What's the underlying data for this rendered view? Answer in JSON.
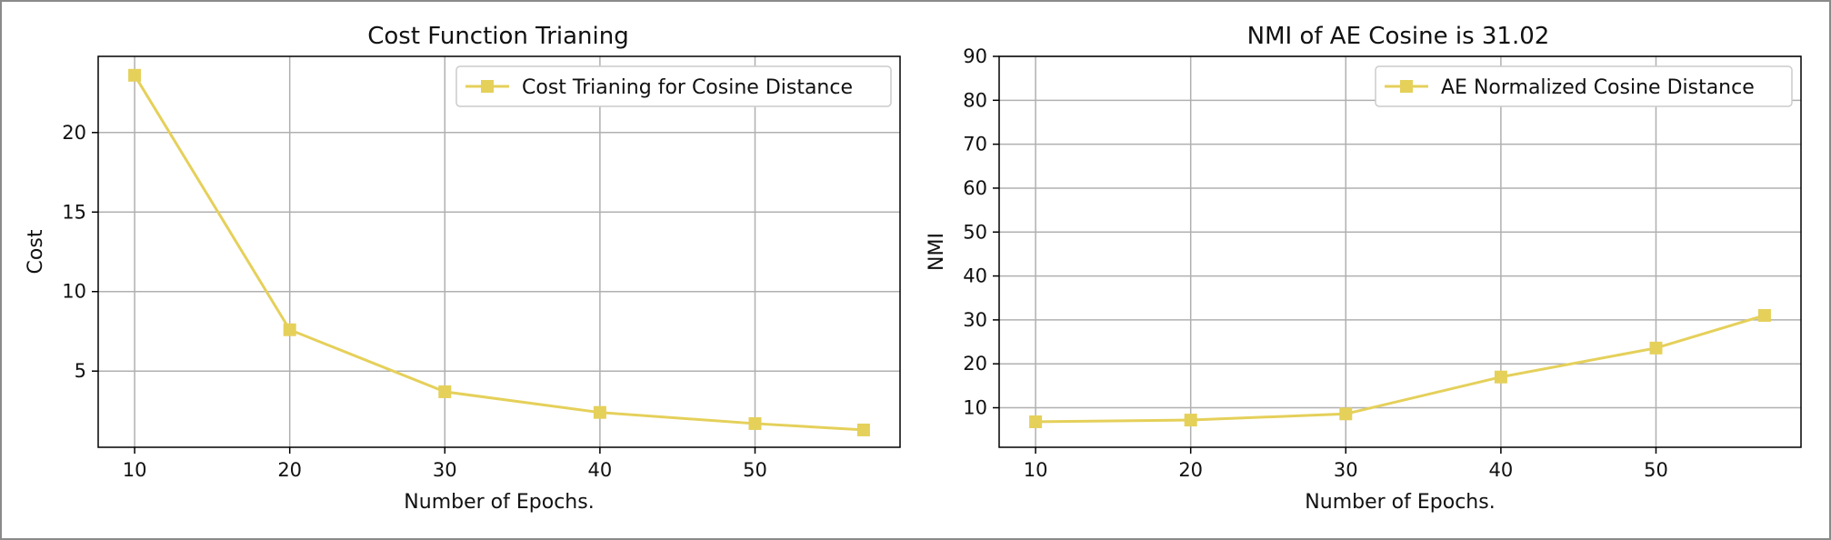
{
  "chart_data": [
    {
      "type": "line",
      "title": "Cost Function Trianing",
      "xlabel": "Number of Epochs.",
      "ylabel": "Cost",
      "x": [
        10,
        20,
        30,
        40,
        50,
        57
      ],
      "xlim": [
        7.65,
        59.35
      ],
      "ylim": [
        0.21,
        24.79
      ],
      "xticks": [
        10,
        20,
        30,
        40,
        50
      ],
      "yticks": [
        5,
        10,
        15,
        20
      ],
      "grid": true,
      "legend_position": "upper right",
      "series": [
        {
          "name": "Cost Trianing for Cosine Distance",
          "color": "#e5d05a",
          "marker": "square",
          "values": [
            23.6,
            7.6,
            3.7,
            2.4,
            1.7,
            1.3
          ]
        }
      ]
    },
    {
      "type": "line",
      "title": "NMI of AE Cosine is 31.02",
      "xlabel": "Number of Epochs.",
      "ylabel": "NMI",
      "x": [
        10,
        20,
        30,
        40,
        50,
        57
      ],
      "xlim": [
        7.65,
        59.35
      ],
      "ylim": [
        1.0,
        90.0
      ],
      "xticks": [
        10,
        20,
        30,
        40,
        50
      ],
      "yticks": [
        10,
        20,
        30,
        40,
        50,
        60,
        70,
        80,
        90
      ],
      "grid": true,
      "legend_position": "upper right",
      "series": [
        {
          "name": "AE Normalized Cosine Distance",
          "color": "#e5d05a",
          "marker": "square",
          "values": [
            6.8,
            7.2,
            8.6,
            17.0,
            23.6,
            31.02
          ]
        }
      ]
    }
  ]
}
